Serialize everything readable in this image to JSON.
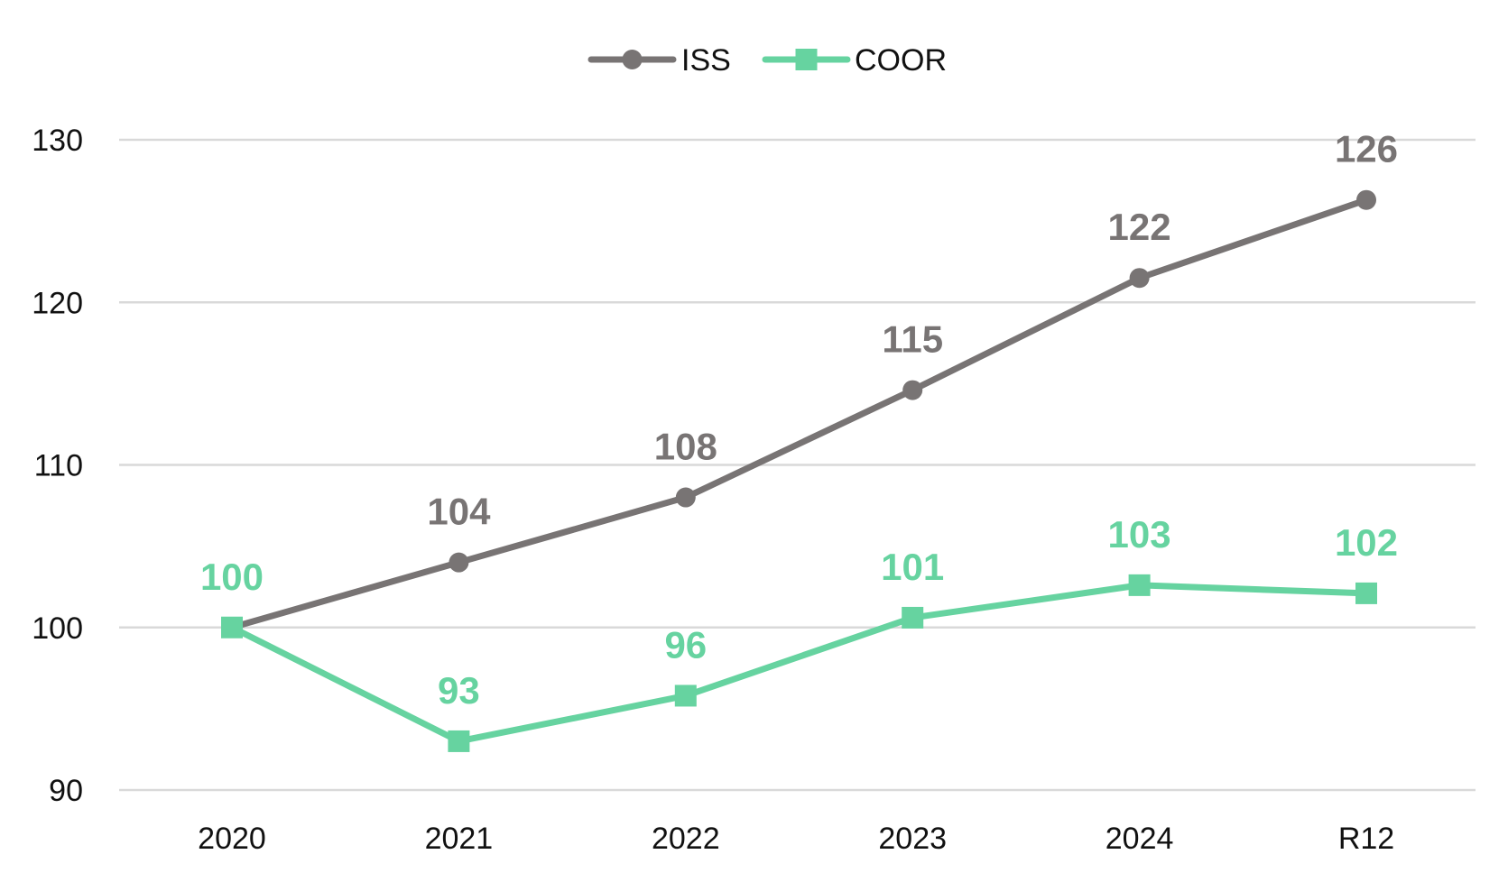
{
  "chart_data": {
    "type": "line",
    "categories": [
      "2020",
      "2021",
      "2022",
      "2023",
      "2024",
      "R12"
    ],
    "series": [
      {
        "name": "ISS",
        "values": [
          100,
          104,
          108,
          114.6,
          121.5,
          126.3
        ],
        "labels": [
          "",
          "104",
          "108",
          "115",
          "122",
          "126"
        ],
        "color": "#787474",
        "marker": "circle"
      },
      {
        "name": "COOR",
        "values": [
          100,
          93,
          95.8,
          100.6,
          102.6,
          102.1
        ],
        "labels": [
          "100",
          "93",
          "96",
          "101",
          "103",
          "102"
        ],
        "color": "#66d3a0",
        "marker": "square"
      }
    ],
    "ylim": [
      90,
      130
    ],
    "yticks": [
      90,
      100,
      110,
      120,
      130
    ],
    "title": "",
    "xlabel": "",
    "ylabel": "",
    "grid": true,
    "legend_position": "top-center",
    "gridline_color": "#d9d9d9"
  }
}
